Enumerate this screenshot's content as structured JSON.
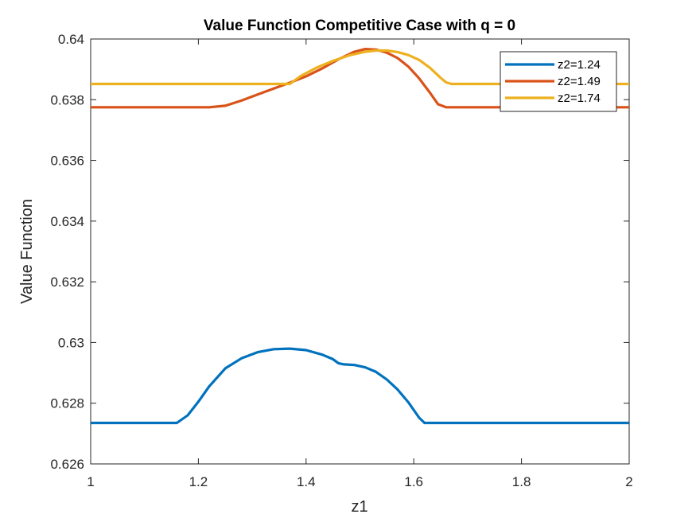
{
  "chart_data": {
    "type": "line",
    "title": "Value Function Competitive Case with q = 0",
    "xlabel": "z1",
    "ylabel": "Value Function",
    "xlim": [
      1,
      2
    ],
    "ylim": [
      0.626,
      0.64
    ],
    "xticks": [
      1,
      1.2,
      1.4,
      1.6,
      1.8,
      2
    ],
    "xtick_labels": [
      "1",
      "1.2",
      "1.4",
      "1.6",
      "1.8",
      "2"
    ],
    "yticks": [
      0.626,
      0.628,
      0.63,
      0.632,
      0.634,
      0.636,
      0.638,
      0.64
    ],
    "ytick_labels": [
      "0.626",
      "0.628",
      "0.63",
      "0.632",
      "0.634",
      "0.636",
      "0.638",
      "0.64"
    ],
    "grid": false,
    "legend_position": "top-right",
    "series": [
      {
        "name": "z2=1.24",
        "color": "#0072BD",
        "x": [
          1.0,
          1.16,
          1.18,
          1.2,
          1.22,
          1.25,
          1.28,
          1.31,
          1.34,
          1.37,
          1.4,
          1.43,
          1.45,
          1.46,
          1.47,
          1.49,
          1.51,
          1.53,
          1.55,
          1.57,
          1.59,
          1.61,
          1.62,
          2.0
        ],
        "y": [
          0.62735,
          0.62735,
          0.6276,
          0.62805,
          0.62855,
          0.62915,
          0.62948,
          0.62968,
          0.62978,
          0.6298,
          0.62975,
          0.6296,
          0.62945,
          0.62932,
          0.62928,
          0.62926,
          0.62918,
          0.62903,
          0.62878,
          0.62845,
          0.62803,
          0.62752,
          0.62735,
          0.62735
        ]
      },
      {
        "name": "z2=1.49",
        "color": "#D95319",
        "x": [
          1.0,
          1.22,
          1.25,
          1.28,
          1.31,
          1.34,
          1.37,
          1.4,
          1.43,
          1.46,
          1.49,
          1.51,
          1.53,
          1.55,
          1.57,
          1.59,
          1.61,
          1.63,
          1.645,
          1.66,
          2.0
        ],
        "y": [
          0.63775,
          0.63775,
          0.6378,
          0.63797,
          0.63817,
          0.63837,
          0.63856,
          0.63877,
          0.63903,
          0.63933,
          0.63958,
          0.63967,
          0.63965,
          0.63955,
          0.63937,
          0.63909,
          0.6387,
          0.63823,
          0.63785,
          0.63775,
          0.63775
        ]
      },
      {
        "name": "z2=1.74",
        "color": "#EDB120",
        "x": [
          1.0,
          1.37,
          1.39,
          1.42,
          1.45,
          1.48,
          1.51,
          1.53,
          1.55,
          1.57,
          1.59,
          1.61,
          1.63,
          1.65,
          1.66,
          1.67,
          2.0
        ],
        "y": [
          0.63852,
          0.63852,
          0.63878,
          0.63906,
          0.63928,
          0.63946,
          0.63958,
          0.63962,
          0.63962,
          0.63957,
          0.63947,
          0.63931,
          0.63905,
          0.63872,
          0.63857,
          0.63852,
          0.63852
        ]
      }
    ]
  }
}
